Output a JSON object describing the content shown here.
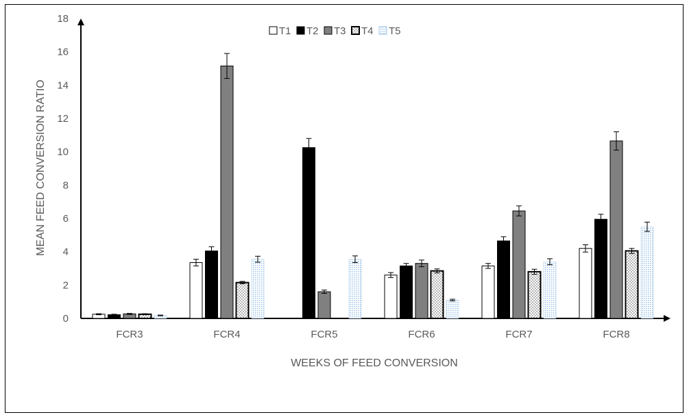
{
  "chart_data": {
    "type": "bar",
    "title": "",
    "xlabel": "WEEKS OF FEED CONVERSION",
    "ylabel": "MEAN FEED CONVERSION RATIO",
    "categories": [
      "FCR3",
      "FCR4",
      "FCR5",
      "FCR6",
      "FCR7",
      "FCR8"
    ],
    "ylim": [
      0,
      18
    ],
    "yticks": [
      0,
      2,
      4,
      6,
      8,
      10,
      12,
      14,
      16,
      18
    ],
    "grid": false,
    "legend_position": "top",
    "error_bars": true,
    "series": [
      {
        "name": "T1",
        "style": "white",
        "color": "#ffffff",
        "values": [
          0.25,
          3.35,
          0,
          2.6,
          3.15,
          4.2
        ],
        "errors": [
          0.03,
          0.2,
          0,
          0.15,
          0.15,
          0.22
        ]
      },
      {
        "name": "T2",
        "style": "black",
        "color": "#000000",
        "values": [
          0.22,
          4.05,
          10.25,
          3.15,
          4.65,
          5.95
        ],
        "errors": [
          0.03,
          0.25,
          0.55,
          0.15,
          0.25,
          0.3
        ]
      },
      {
        "name": "T3",
        "style": "gray",
        "color": "#808080",
        "values": [
          0.27,
          15.15,
          1.6,
          3.3,
          6.45,
          10.65
        ],
        "errors": [
          0.03,
          0.75,
          0.1,
          0.2,
          0.3,
          0.55
        ]
      },
      {
        "name": "T4",
        "style": "dotted",
        "color": "#000000",
        "values": [
          0.25,
          2.15,
          0,
          2.85,
          2.8,
          4.05
        ],
        "errors": [
          0.03,
          0.07,
          0,
          0.12,
          0.15,
          0.15
        ]
      },
      {
        "name": "T5",
        "style": "light-dots",
        "color": "#9dc3e6",
        "values": [
          0.18,
          3.55,
          3.55,
          1.1,
          3.4,
          5.5
        ],
        "errors": [
          0.02,
          0.18,
          0.2,
          0.05,
          0.18,
          0.28
        ]
      }
    ]
  }
}
